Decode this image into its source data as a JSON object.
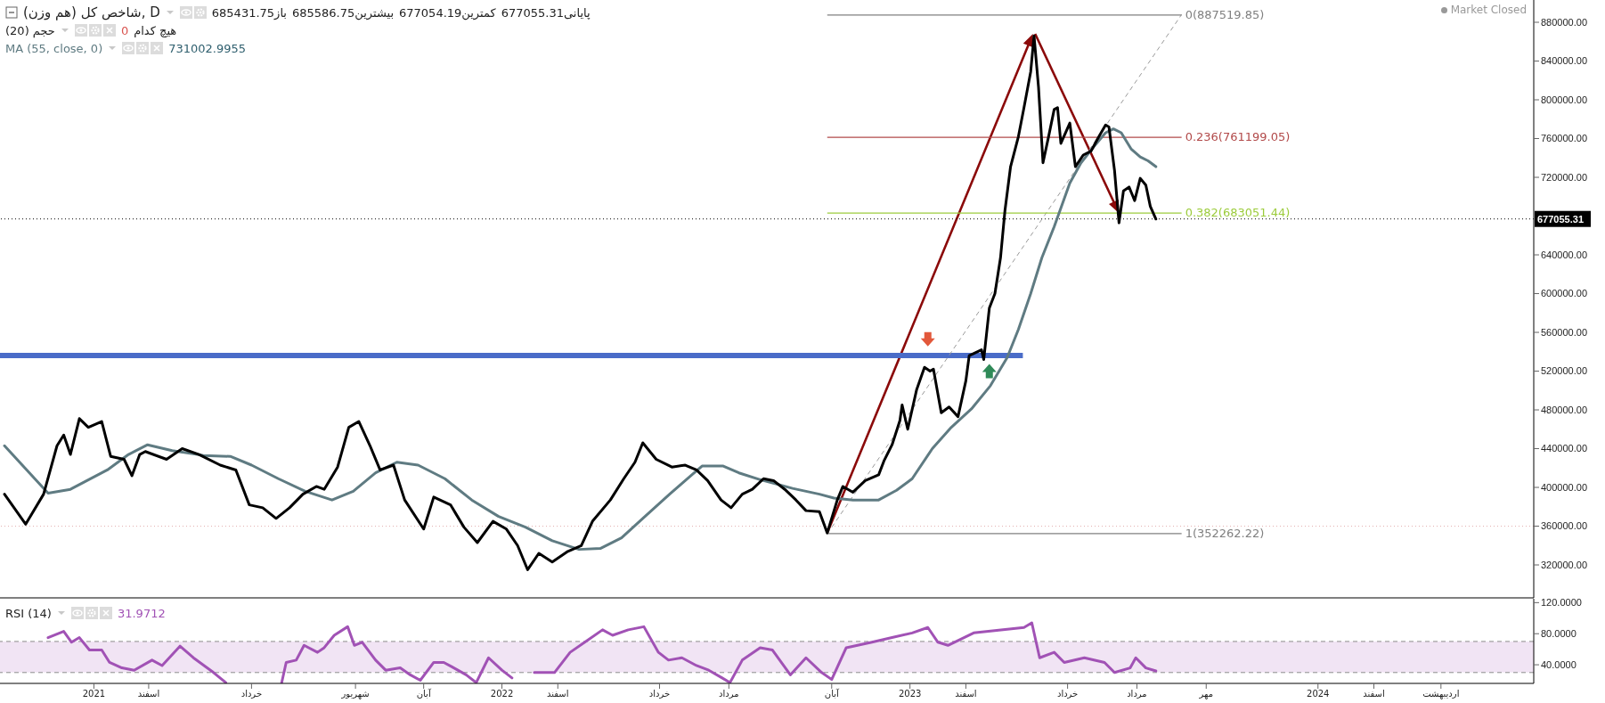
{
  "chart_data": [
    {
      "type": "line",
      "title": "شاخص کل (هم وزن), D",
      "legend": "top left",
      "tick_labels": "y",
      "annotations": [
        "باز685431.75",
        "بیشترین685586.75",
        "کمترین677054.19",
        "پایانی677055.31",
        "حجم (20)",
        "هیچ کدام",
        "0",
        "731002.9955",
        "Market Closed"
      ],
      "xlim": [
        "2020-10-09",
        "2024-07-12"
      ],
      "ylim": [
        286000,
        903000
      ],
      "yticks": [
        {
          "value": 320000,
          "label": "320000.00"
        },
        {
          "value": 360000,
          "label": "360000.00"
        },
        {
          "value": 400000,
          "label": "400000.00"
        },
        {
          "value": 440000,
          "label": "440000.00"
        },
        {
          "value": 480000,
          "label": "480000.00"
        },
        {
          "value": 520000,
          "label": "520000.00"
        },
        {
          "value": 560000,
          "label": "560000.00"
        },
        {
          "value": 600000,
          "label": "600000.00"
        },
        {
          "value": 640000,
          "label": "640000.00"
        },
        {
          "value": 720000,
          "label": "720000.00"
        },
        {
          "value": 760000,
          "label": "760000.00"
        },
        {
          "value": 800000,
          "label": "800000.00"
        },
        {
          "value": 840000,
          "label": "840000.00"
        },
        {
          "value": 880000,
          "label": "880000.00"
        }
      ],
      "series": [
        {
          "color": "#4a6cc8",
          "x": [
            "2020-10-09",
            "2023-04-12"
          ],
          "values": [
            536000,
            536000
          ]
        },
        {
          "line_style": "dashed",
          "color": "#9a9a9a",
          "x": [
            "2022-10-19",
            "2023-09-01"
          ],
          "values": [
            352000,
            888000
          ]
        },
        {
          "name": "0(887519.85)",
          "color": "#808080",
          "x": [
            "2022-10-19",
            "2023-09-01"
          ],
          "values": [
            887519.85,
            887519.85
          ]
        },
        {
          "name": "0.236(761199.05)",
          "color": "#b24a4a",
          "x": [
            "2022-10-19",
            "2023-09-01"
          ],
          "values": [
            761199.05,
            761199.05
          ]
        },
        {
          "name": "0.382(683051.44)",
          "color": "#9ccc3c",
          "x": [
            "2022-10-19",
            "2023-09-01"
          ],
          "values": [
            683051.44,
            683051.44
          ]
        },
        {
          "name": "1(352262.22)",
          "color": "#808080",
          "x": [
            "2022-10-19",
            "2023-09-01"
          ],
          "values": [
            352262.22,
            352262.22
          ]
        },
        {
          "name": "MA (55, close, 0)",
          "color": "#5f7b82",
          "x": [
            "2020-10-13",
            "2020-11-21",
            "2020-12-11",
            "2021-01-13",
            "2021-02-01",
            "2021-02-18",
            "2021-03-12",
            "2021-04-09",
            "2021-05-03",
            "2021-05-22",
            "2021-06-15",
            "2021-07-09",
            "2021-08-02",
            "2021-08-21",
            "2021-09-10",
            "2021-09-29",
            "2021-10-18",
            "2021-11-11",
            "2021-12-05",
            "2021-12-29",
            "2022-01-22",
            "2022-02-15",
            "2022-03-11",
            "2022-03-30",
            "2022-04-18",
            "2022-05-07",
            "2022-05-31",
            "2022-06-19",
            "2022-06-29",
            "2022-07-18",
            "2022-08-01",
            "2022-08-20",
            "2022-09-18",
            "2022-10-12",
            "2022-10-25",
            "2022-11-11",
            "2022-12-04",
            "2022-12-20",
            "2023-01-03",
            "2023-01-21",
            "2023-02-07",
            "2023-02-25",
            "2023-03-14",
            "2023-03-29",
            "2023-04-08",
            "2023-04-19",
            "2023-04-29",
            "2023-05-10",
            "2023-05-24",
            "2023-06-03",
            "2023-06-14",
            "2023-06-25",
            "2023-07-02",
            "2023-07-09",
            "2023-07-18",
            "2023-07-26",
            "2023-08-02",
            "2023-08-09"
          ],
          "values": [
            443000,
            394000,
            398000,
            418000,
            434000,
            444000,
            438000,
            433000,
            432000,
            423000,
            409000,
            396000,
            387000,
            396000,
            415000,
            426000,
            423000,
            409000,
            387000,
            370000,
            359000,
            345000,
            336000,
            337000,
            348000,
            368000,
            393000,
            412000,
            422000,
            422000,
            415000,
            408000,
            399000,
            393000,
            389000,
            387000,
            387000,
            397000,
            409000,
            440000,
            462000,
            481000,
            505000,
            534000,
            563000,
            600000,
            637000,
            669000,
            714000,
            735000,
            751000,
            766000,
            770000,
            766000,
            749000,
            741000,
            737000,
            731000
          ]
        },
        {
          "color": "#000000",
          "x": [
            "2020-10-13",
            "2020-11-01",
            "2020-11-17",
            "2020-11-29",
            "2020-12-05",
            "2020-12-11",
            "2020-12-19",
            "2020-12-27",
            "2021-01-08",
            "2021-01-16",
            "2021-01-28",
            "2021-02-04",
            "2021-02-11",
            "2021-02-16",
            "2021-03-07",
            "2021-03-21",
            "2021-04-05",
            "2021-04-24",
            "2021-05-08",
            "2021-05-20",
            "2021-06-01",
            "2021-06-13",
            "2021-06-25",
            "2021-07-07",
            "2021-07-19",
            "2021-07-26",
            "2021-08-07",
            "2021-08-17",
            "2021-08-26",
            "2021-09-05",
            "2021-09-14",
            "2021-09-26",
            "2021-10-06",
            "2021-10-23",
            "2021-11-01",
            "2021-11-16",
            "2021-11-28",
            "2021-12-10",
            "2021-12-24",
            "2022-01-05",
            "2022-01-15",
            "2022-01-24",
            "2022-02-03",
            "2022-02-15",
            "2022-03-01",
            "2022-03-13",
            "2022-03-23",
            "2022-04-08",
            "2022-04-20",
            "2022-04-30",
            "2022-05-07",
            "2022-05-19",
            "2022-06-02",
            "2022-06-14",
            "2022-06-24",
            "2022-07-04",
            "2022-07-16",
            "2022-07-25",
            "2022-08-04",
            "2022-08-13",
            "2022-08-23",
            "2022-09-01",
            "2022-09-11",
            "2022-09-21",
            "2022-09-30",
            "2022-10-12",
            "2022-10-19",
            "2022-10-28",
            "2022-11-02",
            "2022-11-11",
            "2022-11-22",
            "2022-12-04",
            "2022-12-09",
            "2022-12-16",
            "2022-12-23",
            "2022-12-25",
            "2022-12-30",
            "2023-01-07",
            "2023-01-14",
            "2023-01-19",
            "2023-01-22",
            "2023-01-29",
            "2023-02-05",
            "2023-02-13",
            "2023-02-20",
            "2023-02-23",
            "2023-03-06",
            "2023-03-08",
            "2023-03-13",
            "2023-03-18",
            "2023-03-23",
            "2023-03-27",
            "2023-04-01",
            "2023-04-08",
            "2023-04-13",
            "2023-04-19",
            "2023-04-22",
            "2023-04-26",
            "2023-04-30",
            "2023-05-05",
            "2023-05-10",
            "2023-05-13",
            "2023-05-16",
            "2023-05-24",
            "2023-05-29",
            "2023-06-05",
            "2023-06-12",
            "2023-06-18",
            "2023-06-25",
            "2023-06-28",
            "2023-07-03",
            "2023-07-07",
            "2023-07-11",
            "2023-07-16",
            "2023-07-21",
            "2023-07-26",
            "2023-07-31",
            "2023-08-04",
            "2023-08-09"
          ],
          "values": [
            393000,
            362000,
            393000,
            443000,
            454000,
            434000,
            471000,
            462000,
            468000,
            432000,
            429000,
            412000,
            434000,
            437000,
            429000,
            440000,
            434000,
            423000,
            418000,
            382000,
            379000,
            368000,
            379000,
            393000,
            401000,
            398000,
            421000,
            462000,
            468000,
            443000,
            418000,
            423000,
            387000,
            357000,
            390000,
            382000,
            359000,
            343000,
            365000,
            357000,
            340000,
            315000,
            332000,
            323000,
            334000,
            340000,
            365000,
            387000,
            409000,
            426000,
            446000,
            429000,
            421000,
            423000,
            418000,
            407000,
            387000,
            379000,
            393000,
            398000,
            409000,
            407000,
            398000,
            387000,
            376000,
            375000,
            353000,
            387000,
            401000,
            395000,
            407000,
            413000,
            428000,
            444000,
            469000,
            485000,
            460000,
            501000,
            524000,
            520000,
            522000,
            477000,
            483000,
            473000,
            510000,
            536000,
            542000,
            532000,
            585000,
            600000,
            637000,
            686000,
            731000,
            762000,
            792000,
            829000,
            866000,
            813000,
            735000,
            762000,
            790000,
            792000,
            755000,
            776000,
            731000,
            743000,
            747000,
            760000,
            774000,
            772000,
            727000,
            673000,
            706000,
            710000,
            696000,
            719000,
            712000,
            690000,
            677000
          ]
        }
      ],
      "ref_lines": [
        {
          "axis": "y",
          "value": 360000,
          "color": "#e3b0b0",
          "line_style": "dotted"
        },
        {
          "axis": "y",
          "value": 677055.31,
          "label": "677055.31",
          "color": "#000000",
          "line_style": "dotted"
        }
      ]
    },
    {
      "type": "line",
      "legend": "top left",
      "annotations": [
        "31.9712"
      ],
      "xlim": [
        "2020-10-09",
        "2024-07-12"
      ],
      "xticks": [
        {
          "value": "2021-01-01",
          "label": "2021"
        },
        {
          "value": "2021-02-19",
          "label": "اسفند"
        },
        {
          "value": "2021-05-22",
          "label": "خرداد"
        },
        {
          "value": "2021-08-23",
          "label": "شهریور"
        },
        {
          "value": "2021-10-23",
          "label": "آبان"
        },
        {
          "value": "2022-01-01",
          "label": "2022"
        },
        {
          "value": "2022-02-20",
          "label": "اسفند"
        },
        {
          "value": "2022-05-22",
          "label": "خرداد"
        },
        {
          "value": "2022-07-23",
          "label": "مرداد"
        },
        {
          "value": "2022-10-23",
          "label": "آبان"
        },
        {
          "value": "2023-01-01",
          "label": "2023"
        },
        {
          "value": "2023-02-20",
          "label": "اسفند"
        },
        {
          "value": "2023-05-22",
          "label": "خرداد"
        },
        {
          "value": "2023-07-23",
          "label": "مرداد"
        },
        {
          "value": "2023-09-23",
          "label": "مهر"
        },
        {
          "value": "2024-01-01",
          "label": "2024"
        },
        {
          "value": "2024-02-20",
          "label": "اسفند"
        },
        {
          "value": "2024-04-20",
          "label": "اردیبهشت"
        }
      ],
      "ylim": [
        16,
        125
      ],
      "yticks": [
        {
          "value": 40,
          "label": "40.0000"
        },
        {
          "value": 80,
          "label": "80.0000"
        },
        {
          "value": 120,
          "label": "120.0000"
        }
      ],
      "bands": [
        {
          "axis": "y",
          "from": 30,
          "to": 70,
          "color": "#f1e4f4"
        }
      ],
      "ref_lines": [
        {
          "axis": "y",
          "value": 70,
          "color": "#8c8c8c",
          "line_style": "dashed"
        },
        {
          "axis": "y",
          "value": 30,
          "color": "#8c8c8c",
          "line_style": "dashed"
        }
      ],
      "series": [
        {
          "name": "RSI (14)",
          "color": "#a152b5",
          "x": [
            "2020-11-21",
            "2020-12-05",
            "2020-12-12",
            "2020-12-19",
            "2020-12-28",
            "2021-01-08",
            "2021-01-15",
            "2021-01-26",
            "2021-02-06",
            "2021-02-22",
            "2021-03-03",
            "2021-03-19",
            "2021-03-31",
            "2021-04-18",
            "2021-04-29",
            "2021-05-24",
            "2021-06-18",
            "2021-06-22",
            "2021-07-01",
            "2021-07-08",
            "2021-07-20",
            "2021-07-26",
            "2021-08-04",
            "2021-08-16",
            "2021-08-22",
            "2021-08-29",
            "2021-09-10",
            "2021-09-19",
            "2021-10-02",
            "2021-10-11",
            "2021-10-20",
            "2021-11-01",
            "2021-11-10",
            "2021-11-19",
            "2021-11-30",
            "2021-12-09",
            "2021-12-20",
            "2022-01-01",
            "2022-01-10",
            "2022-01-23",
            "2022-01-30",
            "2022-02-08",
            "2022-02-17",
            "2022-03-03",
            "2022-03-19",
            "2022-04-01",
            "2022-04-10",
            "2022-04-24",
            "2022-05-08",
            "2022-05-21",
            "2022-05-30",
            "2022-06-11",
            "2022-06-24",
            "2022-07-05",
            "2022-07-17",
            "2022-07-24",
            "2022-08-04",
            "2022-08-20",
            "2022-08-31",
            "2022-09-16",
            "2022-09-30",
            "2022-10-14",
            "2022-10-23",
            "2022-11-05",
            "2022-11-28",
            "2022-12-16",
            "2023-01-03",
            "2023-01-17",
            "2023-01-26",
            "2023-02-04",
            "2023-02-27",
            "2023-04-13",
            "2023-04-20",
            "2023-04-27",
            "2023-05-10",
            "2023-05-19",
            "2023-06-06",
            "2023-06-24",
            "2023-07-03",
            "2023-07-17",
            "2023-07-22",
            "2023-07-31",
            "2023-08-09"
          ],
          "values": [
            75,
            83,
            69,
            75,
            59,
            59,
            43,
            36,
            33,
            46,
            39,
            64,
            49,
            30,
            17,
            null,
            17,
            43,
            46,
            65,
            56,
            62,
            78,
            89,
            65,
            69,
            46,
            33,
            36,
            27,
            20,
            43,
            43,
            36,
            27,
            17,
            49,
            33,
            23,
            null,
            30,
            30,
            30,
            56,
            72,
            85,
            78,
            85,
            89,
            56,
            46,
            49,
            39,
            33,
            23,
            17,
            46,
            62,
            59,
            27,
            49,
            30,
            21,
            62,
            69,
            75,
            81,
            88,
            69,
            65,
            81,
            88,
            94,
            49,
            56,
            43,
            49,
            43,
            30,
            36,
            49,
            36,
            32
          ]
        }
      ]
    }
  ]
}
